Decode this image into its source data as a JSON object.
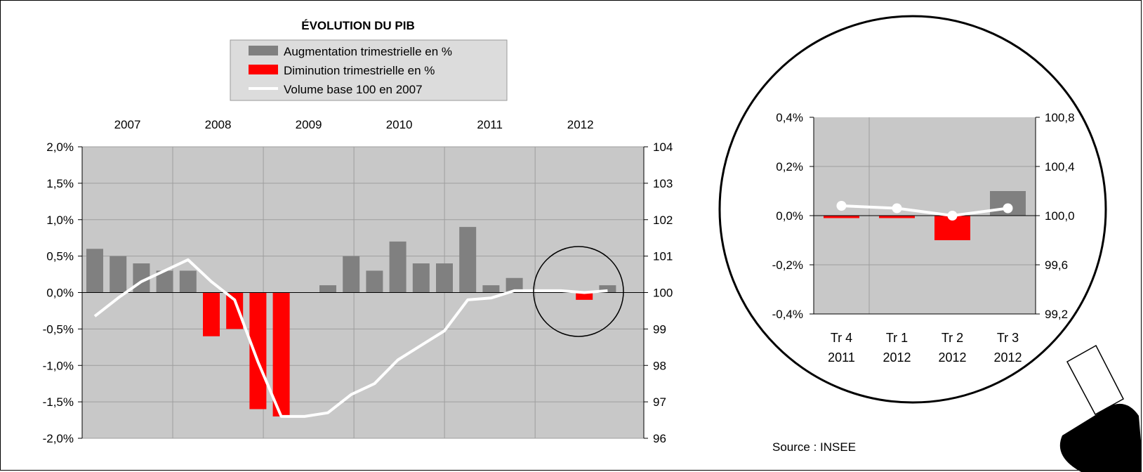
{
  "colors": {
    "increase": "#808080",
    "decrease": "#ff0000",
    "volume_line": "#ffffff",
    "plot_bg": "#c8c8c8",
    "legend_bg": "#dcdcdc"
  },
  "chart_data": [
    {
      "type": "bar",
      "title": "ÉVOLUTION DU PIB",
      "legend_position": "top",
      "legend": [
        {
          "label": "Augmentation trimestrielle en %",
          "kind": "bar",
          "color": "#808080"
        },
        {
          "label": "Diminution trimestrielle en %",
          "kind": "bar",
          "color": "#ff0000"
        },
        {
          "label": "Volume base 100 en 2007",
          "kind": "line",
          "color": "#ffffff"
        }
      ],
      "year_labels": [
        "2007",
        "2008",
        "2009",
        "2010",
        "2011",
        "2012"
      ],
      "left_ticks": [
        "2,0%",
        "1,5%",
        "1,0%",
        "0,5%",
        "0,0%",
        "-0,5%",
        "-1,0%",
        "-1,5%",
        "-2,0%"
      ],
      "right_ticks": [
        "104",
        "103",
        "102",
        "101",
        "100",
        "99",
        "98",
        "97",
        "96"
      ],
      "ylim_left": [
        -2.0,
        2.0
      ],
      "ylim_right": [
        96,
        104
      ],
      "grid": true,
      "quarterly_change_pct": [
        0.6,
        0.5,
        0.4,
        0.3,
        0.3,
        -0.6,
        -0.5,
        -1.6,
        -1.7,
        0.0,
        0.1,
        0.5,
        0.3,
        0.7,
        0.4,
        0.4,
        0.9,
        0.1,
        0.2,
        0.0,
        0.0,
        -0.1,
        0.1
      ],
      "volume_index": [
        99.35,
        99.85,
        100.3,
        100.6,
        100.9,
        100.3,
        99.8,
        98.1,
        96.6,
        96.6,
        96.7,
        97.2,
        97.5,
        98.15,
        98.55,
        98.95,
        99.8,
        99.85,
        100.05,
        100.05,
        100.05,
        100.0,
        100.05
      ],
      "highlight": "circle around 2012 quarters"
    },
    {
      "type": "bar",
      "categories": [
        [
          "Tr 4",
          "2011"
        ],
        [
          "Tr 1",
          "2012"
        ],
        [
          "Tr 2",
          "2012"
        ],
        [
          "Tr 3",
          "2012"
        ]
      ],
      "left_ticks": [
        "0,4%",
        "0,2%",
        "0,0%",
        "-0,2%",
        "-0,4%"
      ],
      "right_ticks": [
        "100,8",
        "100,4",
        "100,0",
        "99,6",
        "99,2"
      ],
      "ylim_left": [
        -0.4,
        0.4
      ],
      "ylim_right": [
        99.2,
        100.8
      ],
      "quarterly_change_pct": [
        -0.01,
        -0.01,
        -0.1,
        0.1
      ],
      "volume_index": [
        100.08,
        100.06,
        100.0,
        100.06
      ]
    }
  ],
  "source": "Source : INSEE"
}
